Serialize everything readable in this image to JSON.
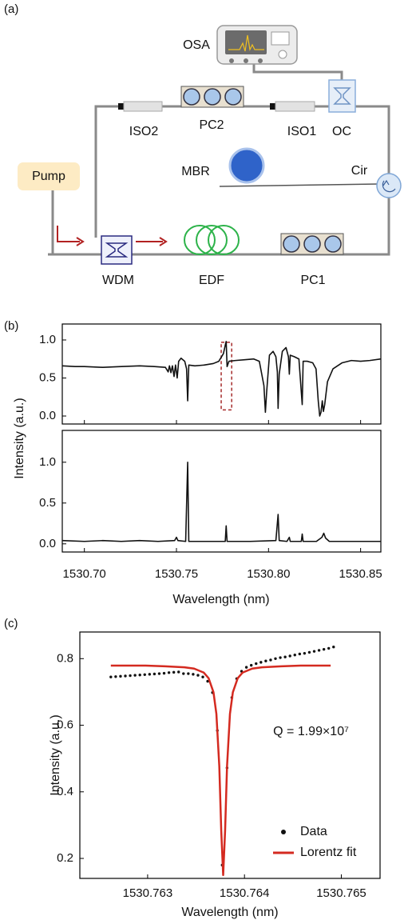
{
  "panel_labels": [
    "(a)",
    "(b)",
    "(c)"
  ],
  "diagram": {
    "osa": "OSA",
    "pc2": "PC2",
    "iso2": "ISO2",
    "iso1": "ISO1",
    "oc": "OC",
    "mbr": "MBR",
    "cir": "Cir",
    "pump": "Pump",
    "wdm": "WDM",
    "edf": "EDF",
    "pc1": "PC1"
  },
  "chart_data": [
    {
      "type": "line",
      "ylabel": "Intensity (a.u.)",
      "xlim": [
        1530.688,
        1530.861
      ],
      "ylim": [
        -0.105,
        1.21
      ],
      "xticks": [
        {
          "value": 1530.7,
          "label": "1530.70"
        },
        1530.75,
        {
          "value": 1530.8,
          "label": "1530.80"
        },
        1530.85
      ],
      "yticks": [
        {
          "value": 0,
          "label": "0.0"
        },
        0.5,
        {
          "value": 1,
          "label": "1.0"
        }
      ],
      "highlight": {
        "x": [
          1530.7743,
          1530.78
        ],
        "y": [
          0.08,
          0.97
        ],
        "color": "#a52a2a"
      },
      "series": [
        {
          "color": "#111111",
          "kind": "line",
          "x": [
            1530.688,
            1530.695,
            1530.7,
            1530.71,
            1530.72,
            1530.73,
            1530.738,
            1530.744,
            1530.7455,
            1530.7462,
            1530.747,
            1530.7478,
            1530.7487,
            1530.7495,
            1530.7504,
            1530.7512,
            1530.7525,
            1530.7545,
            1530.7555,
            1530.7561,
            1530.7567,
            1530.76,
            1530.765,
            1530.77,
            1530.773,
            1530.7755,
            1530.7765,
            1530.777,
            1530.7775,
            1530.7785,
            1530.782,
            1530.787,
            1530.792,
            1530.795,
            1530.7975,
            1530.7983,
            1530.799,
            1530.8005,
            1530.8025,
            1530.804,
            1530.8048,
            1530.8052,
            1530.8058,
            1530.8075,
            1530.8095,
            1530.8108,
            1530.8113,
            1530.8118,
            1530.814,
            1530.8165,
            1530.8183,
            1530.8188,
            1530.821,
            1530.824,
            1530.8258,
            1530.827,
            1530.8278,
            1530.8285,
            1530.8292,
            1530.8298,
            1530.8305,
            1530.832,
            1530.835,
            1530.84,
            1530.845,
            1530.85,
            1530.855,
            1530.861
          ],
          "values": [
            0.66,
            0.65,
            0.65,
            0.64,
            0.65,
            0.66,
            0.65,
            0.64,
            0.58,
            0.66,
            0.57,
            0.66,
            0.52,
            0.67,
            0.5,
            0.72,
            0.76,
            0.72,
            0.62,
            0.2,
            0.67,
            0.66,
            0.67,
            0.69,
            0.72,
            0.82,
            0.93,
            0.98,
            0.65,
            0.72,
            0.73,
            0.74,
            0.75,
            0.72,
            0.4,
            0.05,
            0.32,
            0.8,
            0.85,
            0.78,
            0.58,
            0.1,
            0.55,
            0.85,
            0.9,
            0.78,
            0.55,
            0.8,
            0.78,
            0.75,
            0.15,
            0.72,
            0.72,
            0.7,
            0.62,
            0.2,
            0.0,
            0.05,
            0.2,
            0.06,
            0.15,
            0.45,
            0.62,
            0.7,
            0.73,
            0.72,
            0.73,
            0.75
          ]
        }
      ]
    },
    {
      "type": "line",
      "xlabel": "Wavelength (nm)",
      "xlim": [
        1530.688,
        1530.861
      ],
      "ylim": [
        -0.1,
        1.39
      ],
      "xticks": [
        {
          "value": 1530.7,
          "label": "1530.70"
        },
        1530.75,
        {
          "value": 1530.8,
          "label": "1530.80"
        },
        1530.85
      ],
      "yticks": [
        {
          "value": 0,
          "label": "0.0"
        },
        0.5,
        {
          "value": 1,
          "label": "1.0"
        }
      ],
      "series": [
        {
          "color": "#111111",
          "kind": "line",
          "x": [
            1530.688,
            1530.7,
            1530.71,
            1530.72,
            1530.73,
            1530.74,
            1530.749,
            1530.75,
            1530.7508,
            1530.755,
            1530.7561,
            1530.7567,
            1530.765,
            1530.7765,
            1530.777,
            1530.7775,
            1530.79,
            1530.804,
            1530.8052,
            1530.8058,
            1530.81,
            1530.8113,
            1530.8118,
            1530.8178,
            1530.8183,
            1530.8188,
            1530.826,
            1530.829,
            1530.83,
            1530.831,
            1530.833,
            1530.84,
            1530.85,
            1530.861
          ],
          "values": [
            0.04,
            0.03,
            0.04,
            0.03,
            0.04,
            0.03,
            0.04,
            0.08,
            0.04,
            0.03,
            1.0,
            0.03,
            0.03,
            0.03,
            0.22,
            0.03,
            0.03,
            0.04,
            0.36,
            0.04,
            0.03,
            0.08,
            0.03,
            0.03,
            0.12,
            0.03,
            0.03,
            0.08,
            0.13,
            0.07,
            0.03,
            0.03,
            0.03,
            0.03
          ]
        }
      ]
    },
    {
      "type": "line",
      "ylabel": "Intensity (a.u.)",
      "xlabel": "Wavelength (nm)",
      "xlim": [
        1530.7623,
        1530.7654
      ],
      "ylim": [
        0.14,
        0.88
      ],
      "xticks": [
        1530.763,
        1530.764,
        1530.765
      ],
      "yticks": [
        0.2,
        0.4,
        0.6,
        0.8
      ],
      "annotation": "Q = 1.99×10⁷",
      "legend": "lower right",
      "series": [
        {
          "name": "Data",
          "color": "#111111",
          "kind": "scatter",
          "x": [
            1530.76262,
            1530.76267,
            1530.76272,
            1530.76277,
            1530.76282,
            1530.76287,
            1530.76292,
            1530.76297,
            1530.76302,
            1530.76307,
            1530.76312,
            1530.76317,
            1530.76322,
            1530.76327,
            1530.76332,
            1530.76337,
            1530.76342,
            1530.76347,
            1530.76352,
            1530.76357,
            1530.76362,
            1530.76367,
            1530.76372,
            1530.76377,
            1530.76382,
            1530.76387,
            1530.76392,
            1530.76397,
            1530.76402,
            1530.76407,
            1530.76412,
            1530.76417,
            1530.76422,
            1530.76427,
            1530.76432,
            1530.76437,
            1530.76442,
            1530.76447,
            1530.76452,
            1530.76457,
            1530.76462,
            1530.76467,
            1530.76472,
            1530.76477,
            1530.76482,
            1530.76487,
            1530.76492
          ],
          "values": [
            0.745,
            0.746,
            0.747,
            0.748,
            0.749,
            0.75,
            0.751,
            0.752,
            0.753,
            0.754,
            0.755,
            0.756,
            0.758,
            0.759,
            0.76,
            0.755,
            0.755,
            0.753,
            0.75,
            0.745,
            0.732,
            0.698,
            0.584,
            0.18,
            0.472,
            0.683,
            0.74,
            0.762,
            0.774,
            0.78,
            0.785,
            0.789,
            0.793,
            0.796,
            0.8,
            0.803,
            0.805,
            0.808,
            0.811,
            0.814,
            0.816,
            0.819,
            0.822,
            0.825,
            0.828,
            0.831,
            0.835
          ]
        },
        {
          "name": "Lorentz fit",
          "color": "#d42a20",
          "kind": "line",
          "x": [
            1530.76262,
            1530.76298,
            1530.76318,
            1530.76338,
            1530.76348,
            1530.76358,
            1530.76363,
            1530.76368,
            1530.76371,
            1530.76374,
            1530.76376,
            1530.76378,
            1530.7638,
            1530.76382,
            1530.76385,
            1530.76388,
            1530.76393,
            1530.76398,
            1530.76408,
            1530.76418,
            1530.76438,
            1530.76458,
            1530.76489
          ],
          "values": [
            0.779,
            0.779,
            0.777,
            0.774,
            0.77,
            0.758,
            0.741,
            0.699,
            0.634,
            0.477,
            0.284,
            0.15,
            0.284,
            0.477,
            0.634,
            0.699,
            0.741,
            0.758,
            0.77,
            0.774,
            0.777,
            0.779,
            0.779
          ]
        }
      ]
    }
  ]
}
